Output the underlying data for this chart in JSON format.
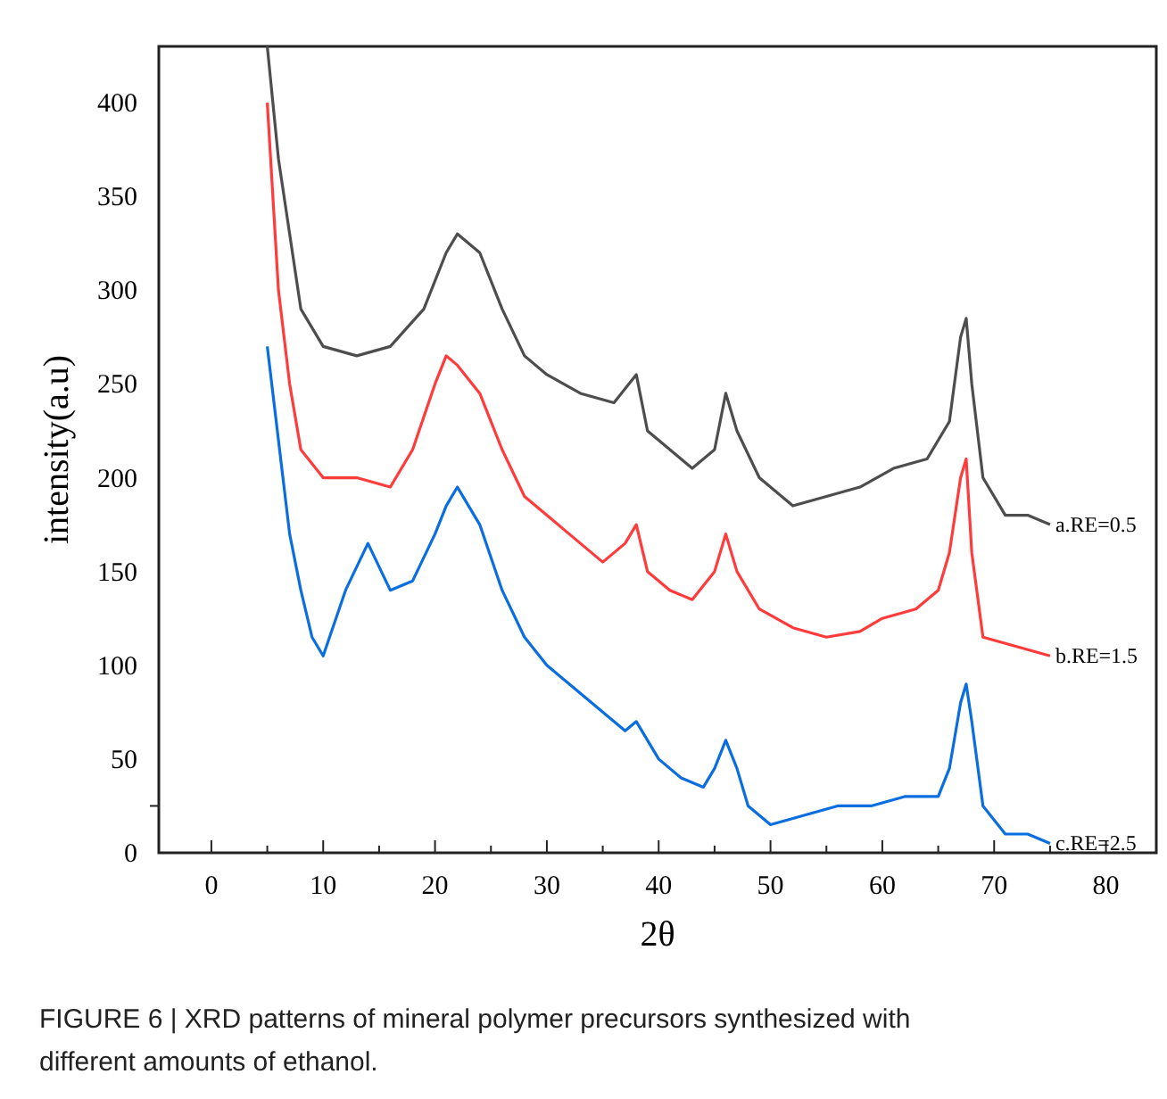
{
  "chart_data": {
    "type": "line",
    "xlabel": "2θ",
    "ylabel": "intensity(a.u)",
    "xlim": [
      -4.7,
      84.5
    ],
    "ylim": [
      0,
      430
    ],
    "xticks": [
      0,
      {
        "value": 5,
        "label": null
      },
      10,
      {
        "value": 15,
        "label": null
      },
      20,
      {
        "value": 25,
        "label": null
      },
      30,
      {
        "value": 35,
        "label": null
      },
      40,
      {
        "value": 45,
        "label": null
      },
      50,
      {
        "value": 55,
        "label": null
      },
      60,
      {
        "value": 65,
        "label": null
      },
      70,
      {
        "value": 75,
        "label": null
      },
      80
    ],
    "yticks": [
      0,
      {
        "value": 25,
        "label": null
      },
      50,
      100,
      150,
      200,
      250,
      300,
      350,
      400
    ],
    "grid": false,
    "marker": "none",
    "line_style": "solid",
    "annotations": [
      "FIGURE 6 | XRD patterns of mineral polymer precursors synthesized with different amounts of ethanol."
    ],
    "series": [
      {
        "name": "a.RE=0.5",
        "color": "#4d4d4d",
        "x": [
          5,
          6,
          7,
          8,
          10,
          13,
          16,
          19,
          21,
          22,
          24,
          26,
          28,
          30,
          33,
          36,
          38,
          39,
          41,
          43,
          45,
          46,
          47,
          49,
          52,
          55,
          58,
          61,
          64,
          66,
          67,
          67.5,
          68,
          69,
          71,
          73,
          75
        ],
        "values": [
          430,
          370,
          330,
          290,
          270,
          265,
          270,
          290,
          320,
          330,
          320,
          290,
          265,
          255,
          245,
          240,
          255,
          225,
          215,
          205,
          215,
          245,
          225,
          200,
          185,
          190,
          195,
          205,
          210,
          230,
          275,
          285,
          250,
          200,
          180,
          180,
          175
        ]
      },
      {
        "name": "b.RE=1.5",
        "color": "#ff3b3b",
        "x": [
          5,
          6,
          7,
          8,
          10,
          13,
          16,
          18,
          20,
          21,
          22,
          24,
          26,
          28,
          30,
          32,
          34,
          35,
          36,
          37,
          38,
          39,
          41,
          43,
          45,
          46,
          47,
          49,
          52,
          55,
          58,
          60,
          63,
          65,
          66,
          67,
          67.5,
          68,
          69,
          72,
          75
        ],
        "values": [
          400,
          300,
          250,
          215,
          200,
          200,
          195,
          215,
          250,
          265,
          260,
          245,
          215,
          190,
          180,
          170,
          160,
          155,
          160,
          165,
          175,
          150,
          140,
          135,
          150,
          170,
          150,
          130,
          120,
          115,
          118,
          125,
          130,
          140,
          160,
          200,
          210,
          160,
          115,
          110,
          105
        ]
      },
      {
        "name": "c.RE=2.5",
        "color": "#0a6ee0",
        "x": [
          5,
          6,
          7,
          8,
          9,
          10,
          12,
          14,
          16,
          18,
          20,
          21,
          22,
          23,
          24,
          26,
          28,
          30,
          32,
          34,
          36,
          37,
          38,
          40,
          42,
          44,
          45,
          46,
          47,
          48,
          50,
          53,
          56,
          59,
          62,
          65,
          66,
          67,
          67.5,
          68,
          69,
          71,
          73,
          75
        ],
        "values": [
          270,
          220,
          170,
          140,
          115,
          105,
          140,
          165,
          140,
          145,
          170,
          185,
          195,
          185,
          175,
          140,
          115,
          100,
          90,
          80,
          70,
          65,
          70,
          50,
          40,
          35,
          45,
          60,
          45,
          25,
          15,
          20,
          25,
          25,
          30,
          30,
          45,
          80,
          90,
          70,
          25,
          10,
          10,
          5
        ]
      }
    ]
  }
}
